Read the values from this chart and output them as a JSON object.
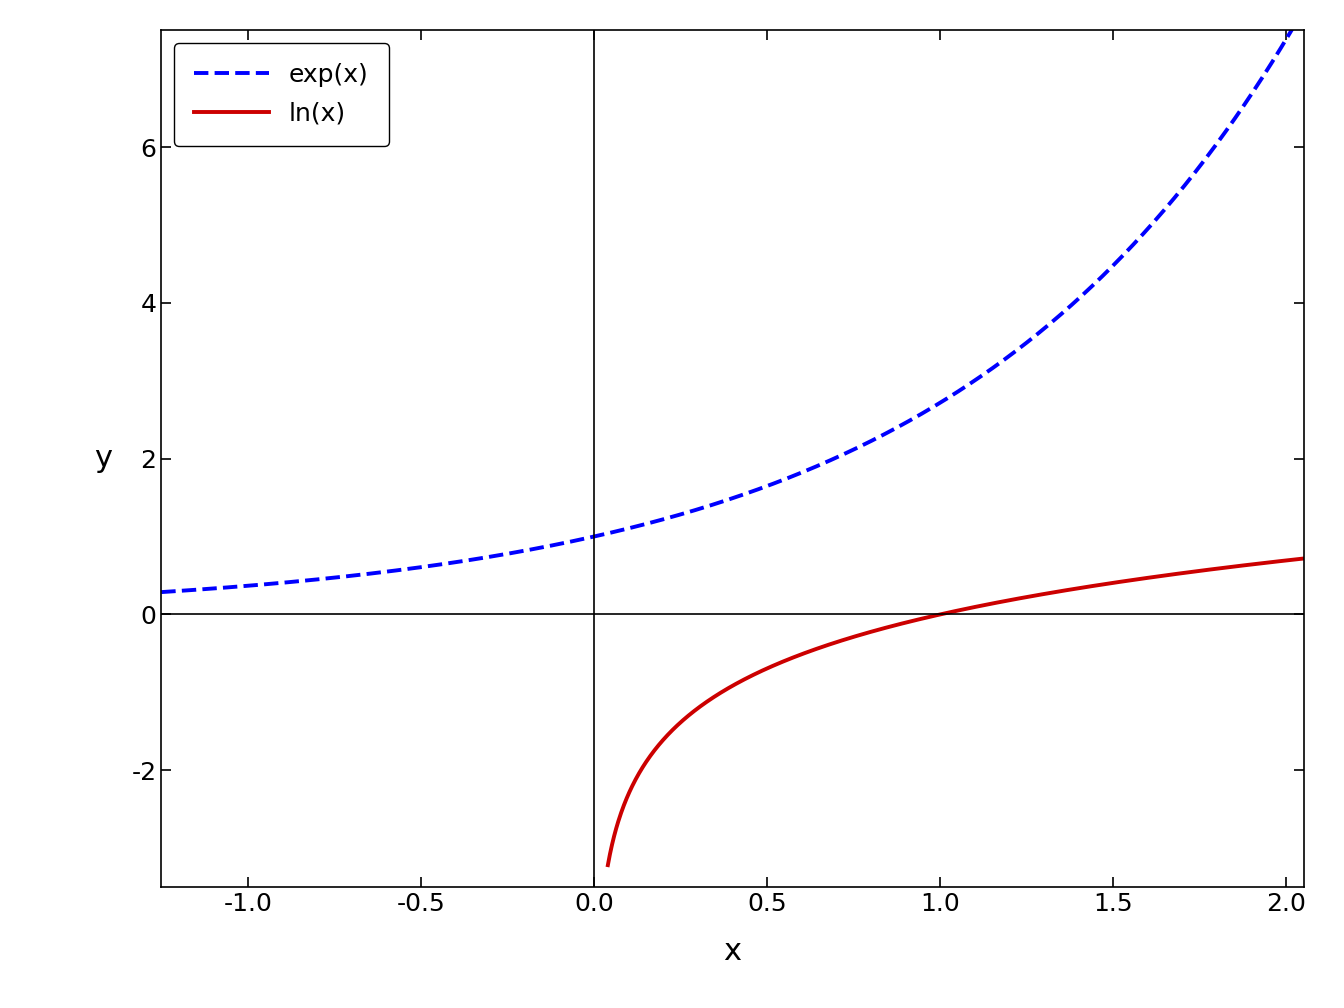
{
  "xlim": [
    -1.25,
    2.05
  ],
  "ylim": [
    -3.5,
    7.5
  ],
  "xticks": [
    -1.0,
    -0.5,
    0.0,
    0.5,
    1.0,
    1.5,
    2.0
  ],
  "yticks": [
    -2,
    0,
    2,
    4,
    6
  ],
  "xlabel": "x",
  "ylabel": "y",
  "exp_color": "#0000FF",
  "ln_color": "#CC0000",
  "exp_label": "exp(x)",
  "ln_label": "ln(x)",
  "exp_linestyle": "dashed",
  "ln_linestyle": "solid",
  "linewidth": 2.8,
  "background_color": "#FFFFFF",
  "legend_fontsize": 18,
  "axis_label_fontsize": 22,
  "tick_fontsize": 18,
  "ln_x_start": 0.04
}
